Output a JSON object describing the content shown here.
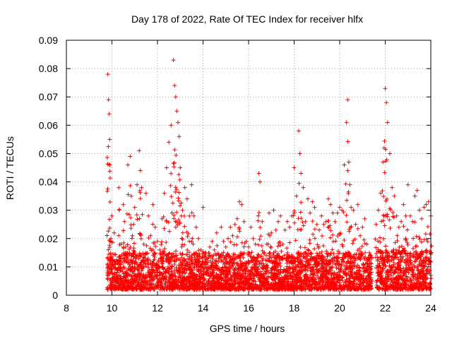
{
  "chart_data": {
    "type": "scatter",
    "title": "Day 178 of 2022, Rate Of TEC Index for receiver hlfx",
    "xlabel": "GPS time / hours",
    "ylabel": "ROTI / TECUs",
    "xlim": [
      8,
      24
    ],
    "ylim": [
      0,
      0.09
    ],
    "x_ticks": [
      8,
      10,
      12,
      14,
      16,
      18,
      20,
      22,
      24
    ],
    "x_tick_labels": [
      "8",
      "10",
      "12",
      "14",
      "16",
      "18",
      "20",
      "22",
      "24"
    ],
    "y_ticks": [
      0,
      0.01,
      0.02,
      0.03,
      0.04,
      0.05,
      0.06,
      0.07,
      0.08,
      0.09
    ],
    "y_tick_labels": [
      "0",
      "0.01",
      "0.02",
      "0.03",
      "0.04",
      "0.05",
      "0.06",
      "0.07",
      "0.08",
      "0.09"
    ],
    "grid": true,
    "marker": "plus",
    "color": "#ff0000",
    "series": [
      {
        "x": [
          9.82,
          9.85,
          9.88,
          9.9,
          9.92,
          10.0,
          10.1,
          10.2,
          10.3,
          10.4,
          10.5,
          10.55,
          10.6,
          10.7,
          10.8,
          10.85,
          10.9,
          10.95,
          11.0,
          11.1,
          11.2,
          11.25,
          11.3,
          11.4,
          11.5,
          11.6,
          11.7,
          11.8,
          11.9,
          12.0,
          12.1,
          12.2,
          12.3,
          12.4,
          12.5,
          12.6,
          12.7,
          12.75,
          12.8,
          12.85,
          12.9,
          12.95,
          13.0,
          13.05,
          13.1,
          13.2,
          13.3,
          13.4,
          13.5,
          13.6,
          13.7,
          13.8,
          13.9,
          14.0,
          14.1,
          14.2,
          14.3,
          14.4,
          14.5,
          14.6,
          14.7,
          14.8,
          14.9,
          15.0,
          15.1,
          15.2,
          15.3,
          15.4,
          15.5,
          15.6,
          15.7,
          15.8,
          15.9,
          16.0,
          16.1,
          16.2,
          16.3,
          16.45,
          16.5,
          16.6,
          16.7,
          16.8,
          16.9,
          17.0,
          17.1,
          17.2,
          17.3,
          17.4,
          17.5,
          17.6,
          17.7,
          17.8,
          17.9,
          18.0,
          18.1,
          18.2,
          18.25,
          18.3,
          18.4,
          18.5,
          18.6,
          18.7,
          18.8,
          18.9,
          19.0,
          19.1,
          19.2,
          19.3,
          19.4,
          19.5,
          19.6,
          19.7,
          19.8,
          19.9,
          20.0,
          20.1,
          20.2,
          20.3,
          20.35,
          20.4,
          20.45,
          20.5,
          20.6,
          20.7,
          20.8,
          20.9,
          21.0,
          21.1,
          21.2,
          21.3,
          21.4,
          21.6,
          21.7,
          21.8,
          21.9,
          21.95,
          22.0,
          22.05,
          22.1,
          22.2,
          22.3,
          22.4,
          22.5,
          22.6,
          22.7,
          22.8,
          22.9,
          23.0,
          23.1,
          23.2,
          23.3,
          23.4,
          23.5,
          23.6,
          23.7,
          23.8,
          23.9,
          24.0
        ],
        "y": [
          0.078,
          0.069,
          0.064,
          0.055,
          0.046,
          0.028,
          0.022,
          0.012,
          0.038,
          0.018,
          0.032,
          0.026,
          0.017,
          0.046,
          0.049,
          0.035,
          0.021,
          0.025,
          0.031,
          0.039,
          0.051,
          0.044,
          0.038,
          0.018,
          0.036,
          0.028,
          0.021,
          0.032,
          0.024,
          0.019,
          0.016,
          0.027,
          0.036,
          0.045,
          0.054,
          0.06,
          0.083,
          0.074,
          0.07,
          0.065,
          0.061,
          0.056,
          0.045,
          0.028,
          0.03,
          0.038,
          0.034,
          0.028,
          0.039,
          0.028,
          0.024,
          0.02,
          0.016,
          0.031,
          0.015,
          0.013,
          0.017,
          0.019,
          0.016,
          0.022,
          0.013,
          0.024,
          0.019,
          0.017,
          0.02,
          0.024,
          0.021,
          0.025,
          0.027,
          0.033,
          0.032,
          0.026,
          0.019,
          0.017,
          0.024,
          0.02,
          0.018,
          0.043,
          0.04,
          0.026,
          0.015,
          0.018,
          0.029,
          0.022,
          0.03,
          0.023,
          0.026,
          0.028,
          0.018,
          0.023,
          0.026,
          0.024,
          0.028,
          0.045,
          0.035,
          0.058,
          0.05,
          0.043,
          0.038,
          0.026,
          0.034,
          0.029,
          0.033,
          0.031,
          0.025,
          0.023,
          0.028,
          0.025,
          0.026,
          0.034,
          0.032,
          0.029,
          0.026,
          0.029,
          0.031,
          0.03,
          0.046,
          0.061,
          0.069,
          0.047,
          0.039,
          0.031,
          0.03,
          0.025,
          0.032,
          0.021,
          0.024,
          0.027,
          0.018,
          0.015,
          0.013,
          0.025,
          0.03,
          0.036,
          0.047,
          0.052,
          0.073,
          0.068,
          0.061,
          0.05,
          0.038,
          0.035,
          0.028,
          0.024,
          0.026,
          0.032,
          0.028,
          0.039,
          0.028,
          0.026,
          0.035,
          0.037,
          0.03,
          0.027,
          0.031,
          0.032,
          0.033,
          0.028
        ]
      }
    ],
    "bulk_band": [
      {
        "start": 9.8,
        "end": 21.4,
        "min": 0.002,
        "max": 0.015
      },
      {
        "start": 21.6,
        "end": 24.0,
        "min": 0.002,
        "max": 0.016
      }
    ]
  }
}
